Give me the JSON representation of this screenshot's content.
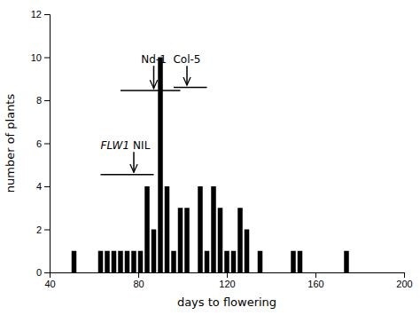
{
  "chart_data": {
    "type": "bar",
    "xlabel": "days to flowering",
    "ylabel": "number of plants",
    "x": [
      51,
      63,
      66,
      69,
      72,
      75,
      78,
      81,
      84,
      87,
      90,
      93,
      96,
      99,
      102,
      108,
      111,
      114,
      117,
      120,
      123,
      126,
      129,
      135,
      150,
      153,
      174
    ],
    "values": [
      1,
      1,
      1,
      1,
      1,
      1,
      1,
      1,
      4,
      2,
      10,
      4,
      1,
      3,
      3,
      4,
      1,
      4,
      3,
      1,
      1,
      3,
      2,
      1,
      1,
      1,
      1
    ],
    "color": "#000000",
    "xlim": [
      40,
      200
    ],
    "ylim": [
      0,
      12
    ],
    "xticks": [
      40,
      80,
      120,
      160,
      200
    ],
    "yticks": [
      0,
      2,
      4,
      6,
      8,
      10,
      12
    ],
    "grid": false,
    "annotations": [
      {
        "text": "Nd-1",
        "x": 87,
        "y": 9.75,
        "arrow_x": 87,
        "arrow_y": [
          9.6,
          8.55
        ],
        "line_x": [
          72,
          99
        ],
        "line_y": 8.45
      },
      {
        "text": "Col-5",
        "x": 102,
        "y": 9.75,
        "arrow_x": 102,
        "arrow_y": [
          9.6,
          8.7
        ],
        "line_x": [
          96,
          111
        ],
        "line_y": 8.6
      },
      {
        "text": [
          "FLW1",
          "NIL"
        ],
        "x": 63,
        "y": 5.75,
        "arrow_x": 78,
        "arrow_y": [
          5.6,
          4.65
        ],
        "line_x": [
          63,
          87
        ],
        "line_y": 4.55
      }
    ]
  }
}
